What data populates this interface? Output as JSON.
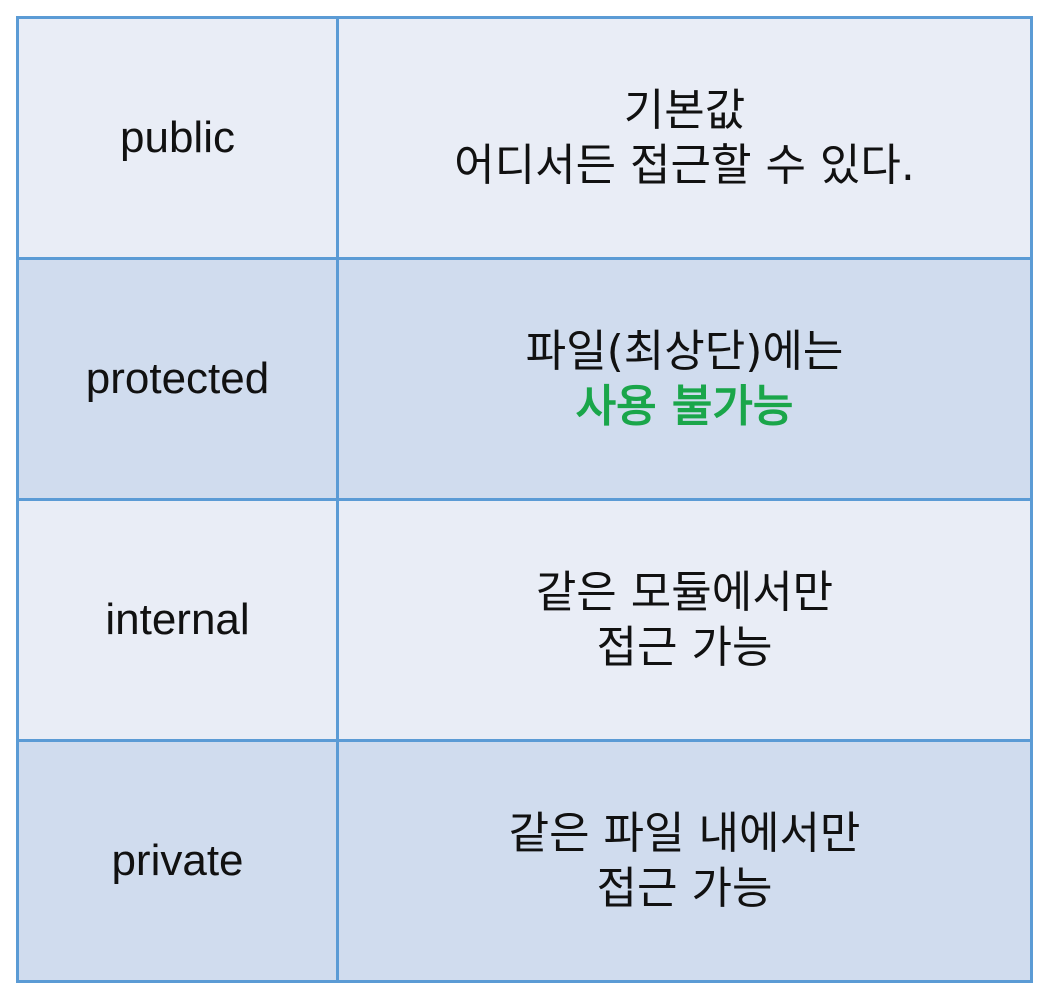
{
  "rows": [
    {
      "keyword": "public",
      "desc_line1": "기본값",
      "desc_line2": "어디서든 접근할 수 있다."
    },
    {
      "keyword": "protected",
      "desc_line1": "파일(최상단)에는",
      "desc_line2": "사용 불가능"
    },
    {
      "keyword": "internal",
      "desc_line1": "같은 모듈에서만",
      "desc_line2": "접근 가능"
    },
    {
      "keyword": "private",
      "desc_line1": "같은 파일 내에서만",
      "desc_line2": "접근 가능"
    }
  ],
  "colors": {
    "border": "#5b9bd5",
    "row_light": "#e9edf6",
    "row_dark": "#d0dcee",
    "highlight_text": "#1aa64a"
  }
}
